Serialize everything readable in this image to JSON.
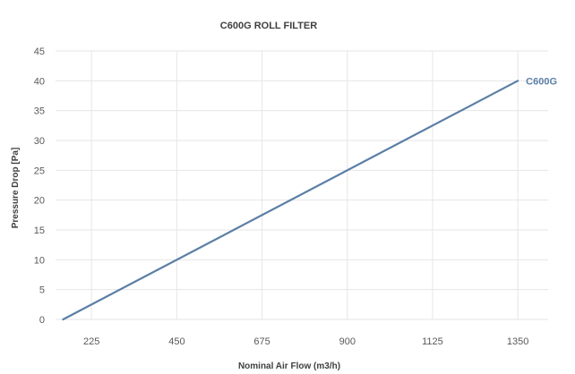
{
  "chart_data": {
    "type": "line",
    "title": "C600G ROLL FILTER",
    "xlabel": "Nominal Air Flow (m3/h)",
    "ylabel": "Pressure Drop [Pa]",
    "x_ticks": [
      225,
      450,
      675,
      900,
      1125,
      1350
    ],
    "y_ticks": [
      0,
      5,
      10,
      15,
      20,
      25,
      30,
      35,
      40,
      45
    ],
    "xlim": [
      130,
      1430
    ],
    "ylim": [
      0,
      45
    ],
    "grid": true,
    "series": [
      {
        "name": "C600G",
        "color": "#5b7fa6",
        "x": [
          150,
          1350
        ],
        "y": [
          0,
          40
        ]
      }
    ],
    "series_label_placement": "line-end"
  }
}
